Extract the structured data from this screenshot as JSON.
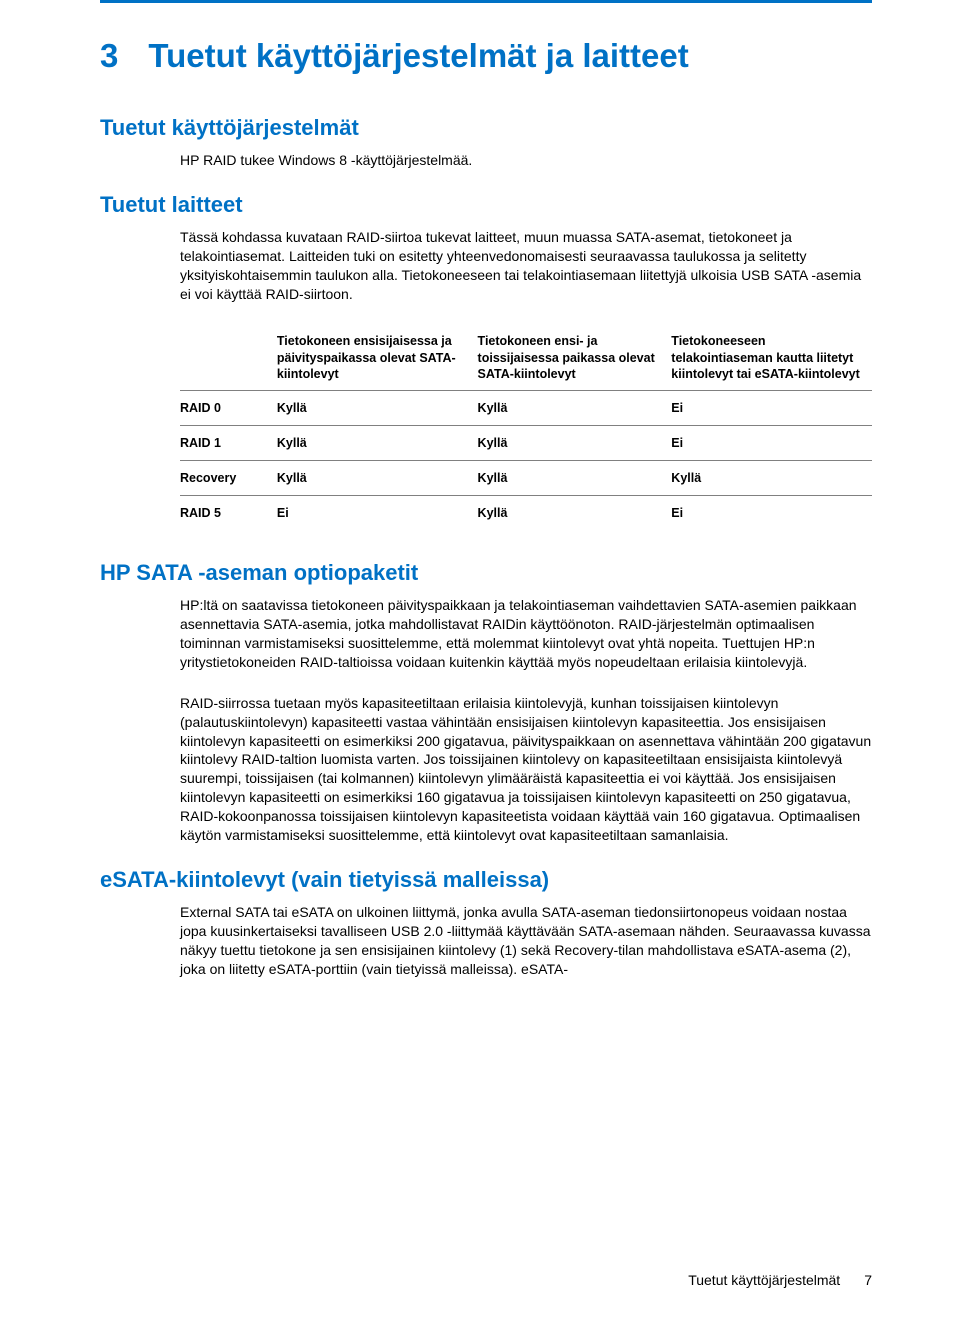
{
  "accent_color": "#0071c5",
  "chapter": {
    "number": "3",
    "title": "Tuetut käyttöjärjestelmät ja laitteet"
  },
  "section_os": {
    "heading": "Tuetut käyttöjärjestelmät",
    "body": "HP RAID tukee Windows 8 -käyttöjärjestelmää."
  },
  "section_devices": {
    "heading": "Tuetut laitteet",
    "body": "Tässä kohdassa kuvataan RAID-siirtoa tukevat laitteet, muun muassa SATA-asemat, tietokoneet ja telakointiasemat. Laitteiden tuki on esitetty yhteenvedonomaisesti seuraavassa taulukossa ja selitetty yksityiskohtaisemmin taulukon alla. Tietokoneeseen tai telakointiasemaan liitettyjä ulkoisia USB SATA -asemia ei voi käyttää RAID-siirtoon."
  },
  "table": {
    "headers": {
      "c1": "",
      "c2": "Tietokoneen ensisijaisessa ja päivityspaikassa olevat SATA-kiintolevyt",
      "c3": "Tietokoneen ensi- ja toissijaisessa paikassa olevat SATA-kiintolevyt",
      "c4": "Tietokoneeseen telakointiaseman kautta liitetyt kiintolevyt tai eSATA-kiintolevyt"
    },
    "rows": [
      {
        "c1": "RAID 0",
        "c2": "Kyllä",
        "c3": "Kyllä",
        "c4": "Ei"
      },
      {
        "c1": "RAID 1",
        "c2": "Kyllä",
        "c3": "Kyllä",
        "c4": "Ei"
      },
      {
        "c1": "Recovery",
        "c2": "Kyllä",
        "c3": "Kyllä",
        "c4": "Kyllä"
      },
      {
        "c1": "RAID 5",
        "c2": "Ei",
        "c3": "Kyllä",
        "c4": "Ei"
      }
    ]
  },
  "section_optio": {
    "heading": "HP SATA -aseman optiopaketit",
    "p1": "HP:ltä on saatavissa tietokoneen päivityspaikkaan ja telakointiaseman vaihdettavien SATA-asemien paikkaan asennettavia SATA-asemia, jotka mahdollistavat RAIDin käyttöönoton. RAID-järjestelmän optimaalisen toiminnan varmistamiseksi suosittelemme, että molemmat kiintolevyt ovat yhtä nopeita. Tuettujen HP:n yritystietokoneiden RAID-taltioissa voidaan kuitenkin käyttää myös nopeudeltaan erilaisia kiintolevyjä.",
    "p2": "RAID-siirrossa tuetaan myös kapasiteetiltaan erilaisia kiintolevyjä, kunhan toissijaisen kiintolevyn (palautuskiintolevyn) kapasiteetti vastaa vähintään ensisijaisen kiintolevyn kapasiteettia. Jos ensisijaisen kiintolevyn kapasiteetti on esimerkiksi 200 gigatavua, päivityspaikkaan on asennettava vähintään 200 gigatavun kiintolevy RAID-taltion luomista varten. Jos toissijainen kiintolevy on kapasiteetiltaan ensisijaista kiintolevyä suurempi, toissijaisen (tai kolmannen) kiintolevyn ylimääräistä kapasiteettia ei voi käyttää. Jos ensisijaisen kiintolevyn kapasiteetti on esimerkiksi 160 gigatavua ja toissijaisen kiintolevyn kapasiteetti on 250 gigatavua, RAID-kokoonpanossa toissijaisen kiintolevyn kapasiteetista voidaan käyttää vain 160 gigatavua. Optimaalisen käytön varmistamiseksi suosittelemme, että kiintolevyt ovat kapasiteetiltaan samanlaisia."
  },
  "section_esata": {
    "heading": "eSATA-kiintolevyt (vain tietyissä malleissa)",
    "body": "External SATA tai eSATA on ulkoinen liittymä, jonka avulla SATA-aseman tiedonsiirtonopeus voidaan nostaa jopa kuusinkertaiseksi tavalliseen USB 2.0 -liittymää käyttävään SATA-asemaan nähden. Seuraavassa kuvassa näkyy tuettu tietokone ja sen ensisijainen kiintolevy (1) sekä Recovery-tilan mahdollistava eSATA-asema (2), joka on liitetty eSATA-porttiin (vain tietyissä malleissa). eSATA-"
  },
  "footer": {
    "label": "Tuetut käyttöjärjestelmät",
    "page": "7"
  }
}
